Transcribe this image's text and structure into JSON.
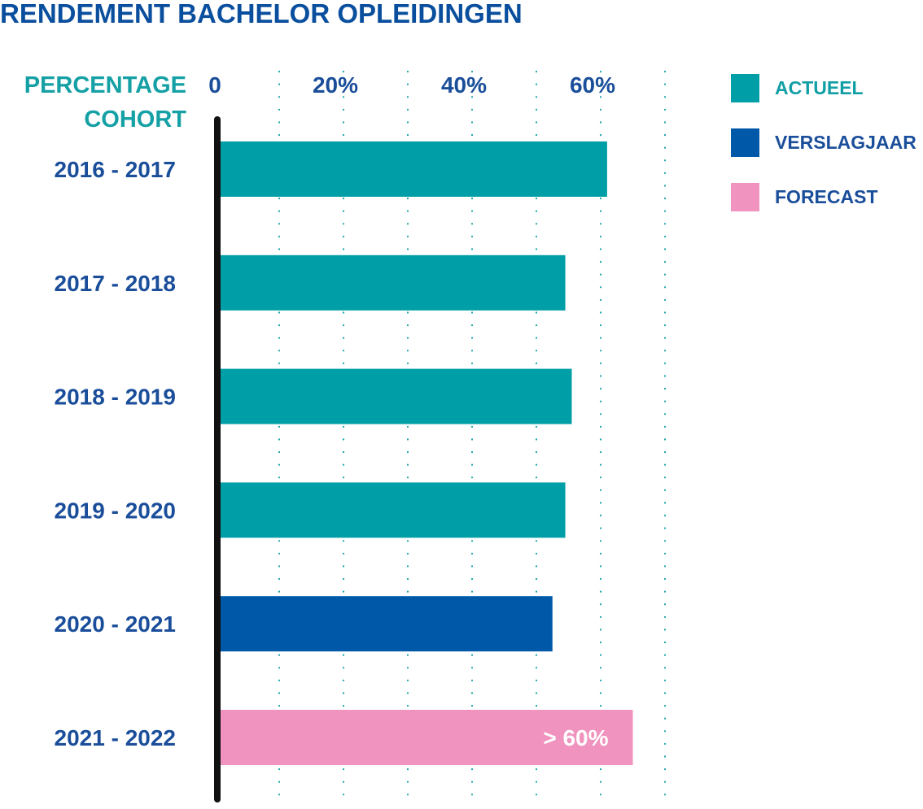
{
  "colors": {
    "title": "#0A4F9E",
    "axis_head": "#14A0A4",
    "category_text": "#1A4E9A",
    "tick_text": "#1A4E9A",
    "grid": "#1BA3A8",
    "baseline": "#111111",
    "bar_label": "#ffffff"
  },
  "chart_data": {
    "type": "bar",
    "orientation": "horizontal",
    "title": "RENDEMENT BACHELOR OPLEIDINGEN",
    "category_axis_label": [
      "PERCENTAGE",
      "COHORT"
    ],
    "ticks": [
      {
        "value": 0,
        "label": "0"
      },
      {
        "value": 20,
        "label": "20%"
      },
      {
        "value": 40,
        "label": "40%"
      },
      {
        "value": 60,
        "label": "60%"
      }
    ],
    "gridlines": [
      10,
      20,
      30,
      40,
      50,
      60,
      70
    ],
    "xlim": [
      0,
      70
    ],
    "grid": true,
    "grid_style": "dotted vertical",
    "categories": [
      "2016 - 2017",
      "2017 - 2018",
      "2018 - 2019",
      "2019 - 2020",
      "2020 - 2021",
      "2021 - 2022"
    ],
    "values": [
      61,
      54.5,
      55.5,
      54.5,
      52.5,
      65
    ],
    "series_index": [
      0,
      0,
      0,
      0,
      1,
      2
    ],
    "bar_labels": [
      "",
      "",
      "",
      "",
      "",
      "> 60%"
    ],
    "series": [
      {
        "name": "ACTUEEL",
        "color": "#009EA6",
        "text_color": "#119FA5"
      },
      {
        "name": "VERSLAGJAAR",
        "color": "#0059A8",
        "text_color": "#1A4E9A"
      },
      {
        "name": "FORECAST",
        "color": "#F093BE",
        "text_color": "#1A4E9A"
      }
    ],
    "legend_position": "top-right"
  }
}
